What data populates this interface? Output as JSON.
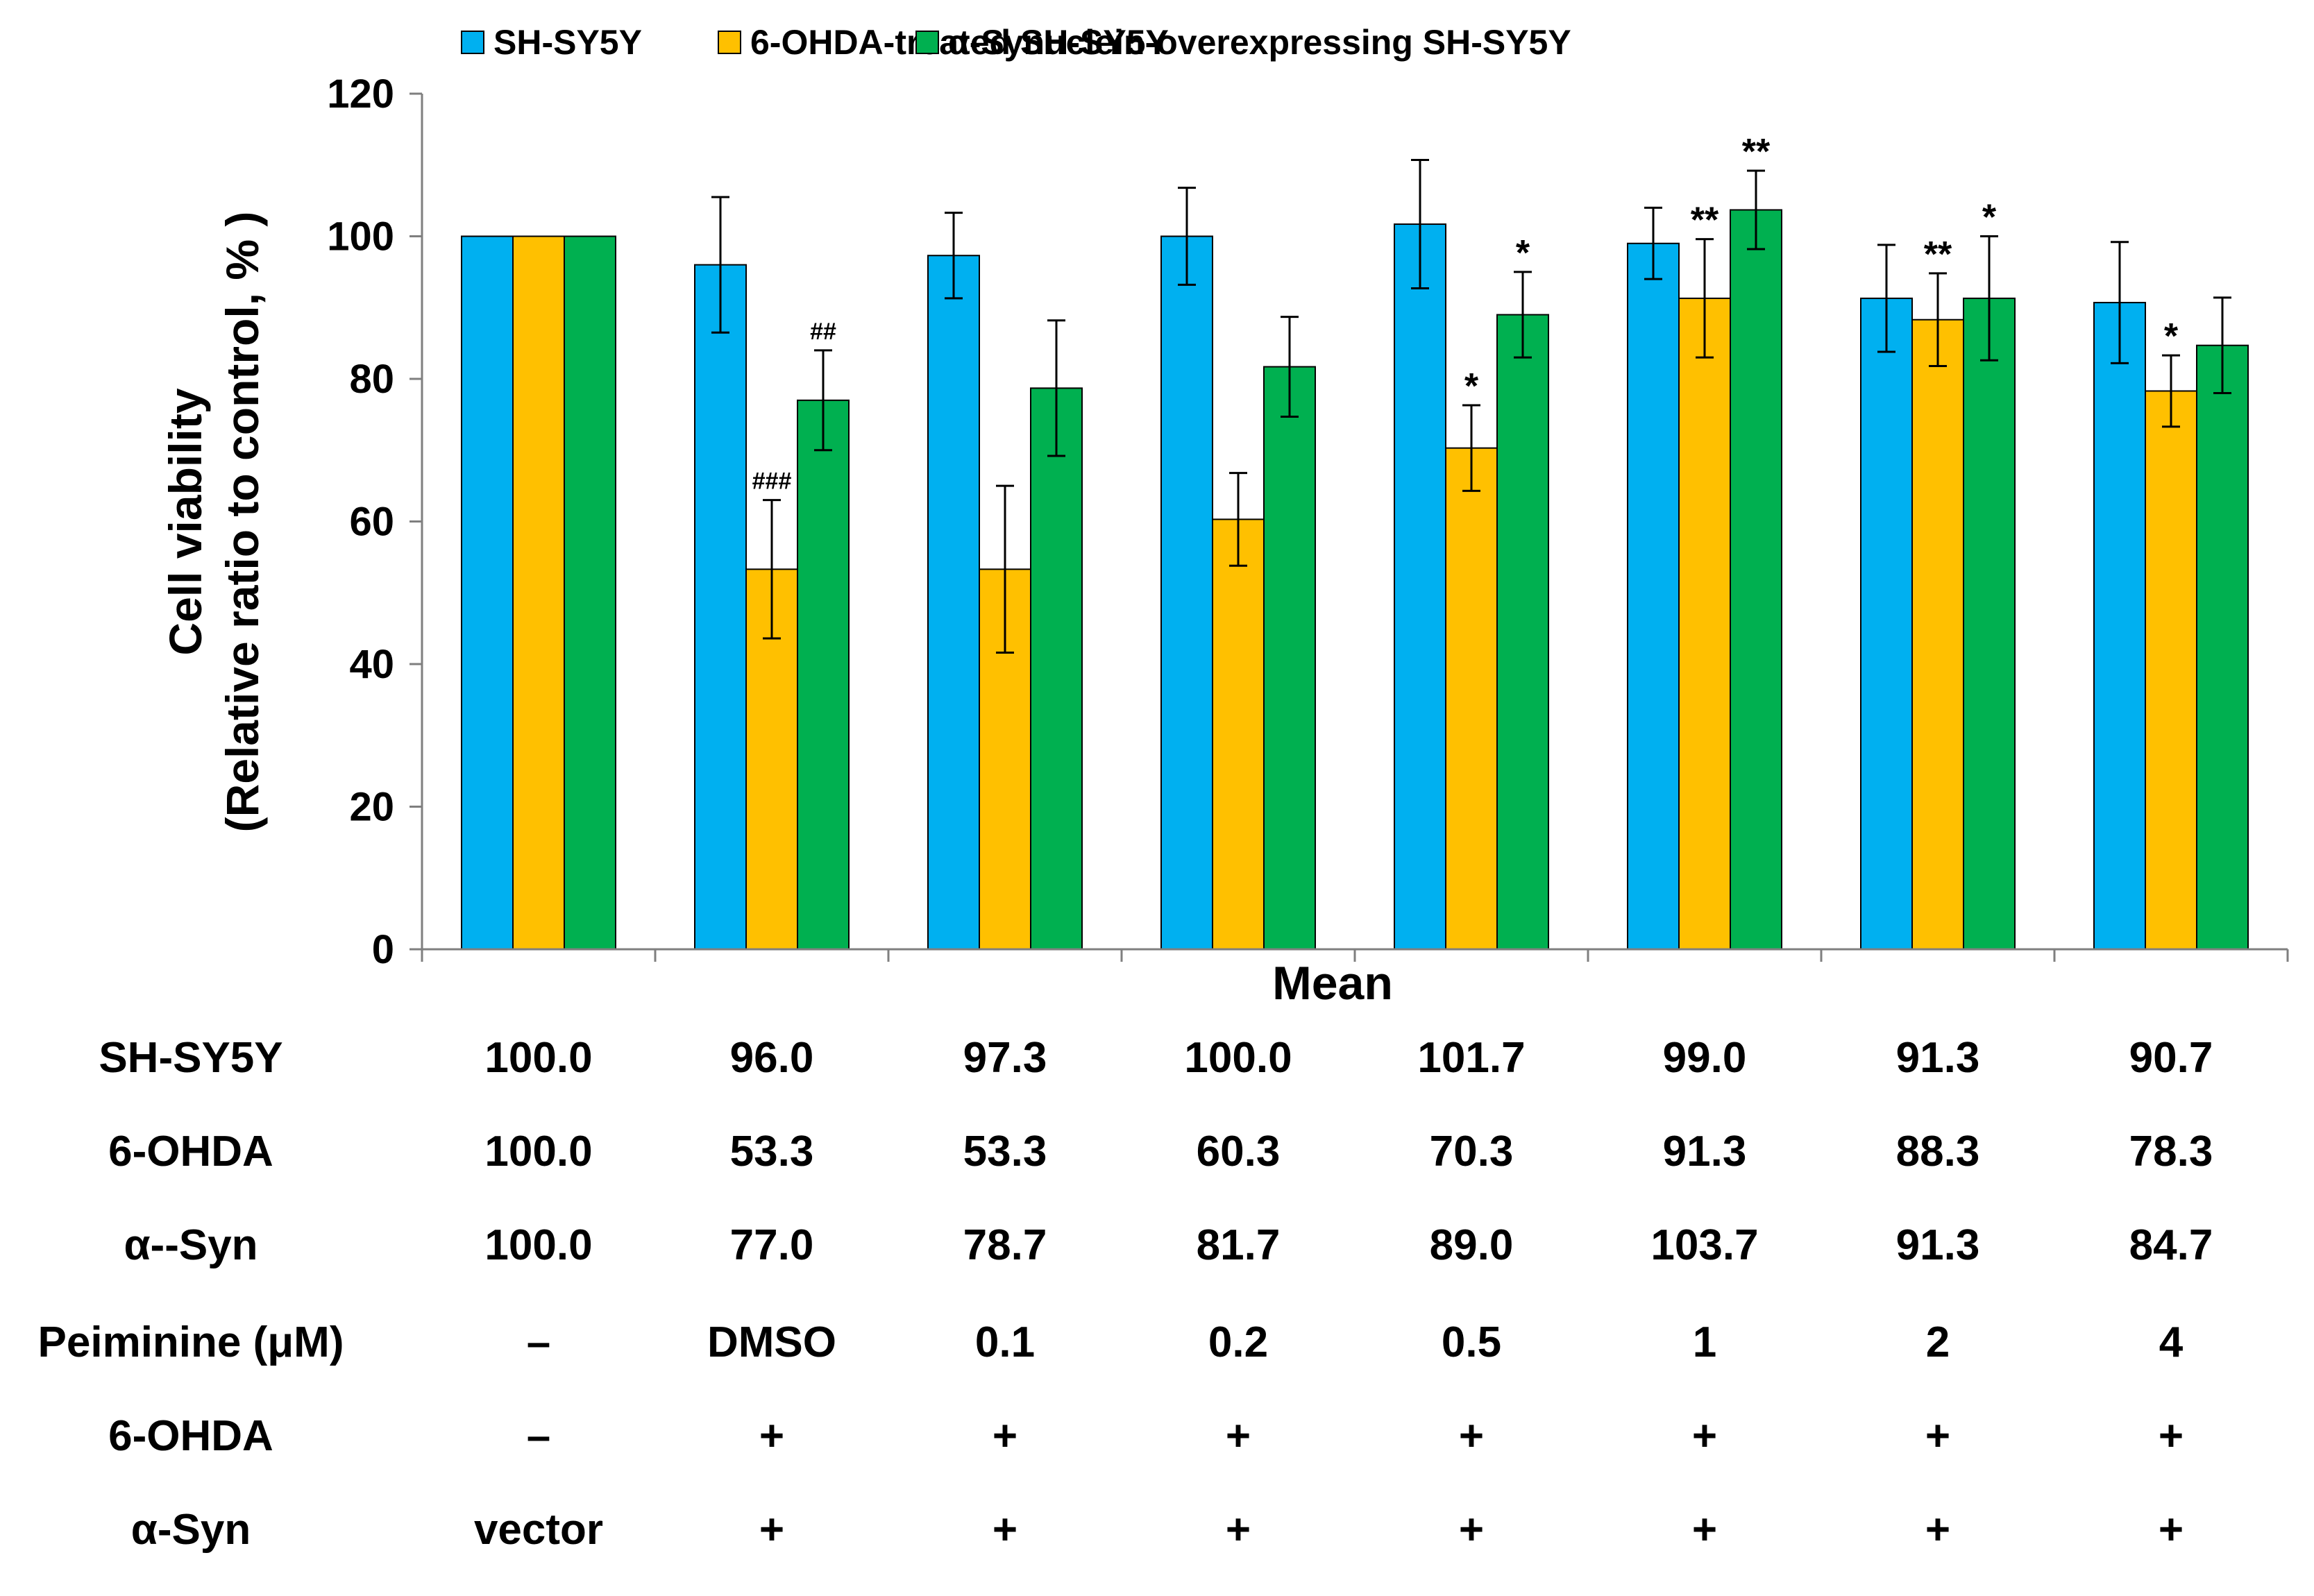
{
  "colors": {
    "sh": "#00B0F0",
    "ohda": "#FFC000",
    "syn": "#00B050",
    "axis": "#7F7F7F",
    "text": "#000000"
  },
  "chart_data": {
    "type": "bar",
    "title": "",
    "xlabel": "Mean",
    "ylabel_line1": "Cell viability",
    "ylabel_line2": "(Relative ratio to control, % )",
    "ylim": [
      0,
      120
    ],
    "yticks": [
      0,
      20,
      40,
      60,
      80,
      100,
      120
    ],
    "legend": [
      "SH-SY5Y",
      "6-OHDA-treated SH-SY5Y",
      "α-Synuclein-overexpressing SH-SY5Y"
    ],
    "series": [
      {
        "name": "SH-SY5Y",
        "key": "sh",
        "values": [
          100.0,
          96.0,
          97.3,
          100.0,
          101.7,
          99.0,
          91.3,
          90.7
        ],
        "errors": [
          0,
          9.5,
          6.0,
          6.8,
          9.0,
          5.0,
          7.5,
          8.5
        ],
        "annotations": [
          "",
          "",
          "",
          "",
          "",
          "",
          "",
          ""
        ]
      },
      {
        "name": "6-OHDA-treated SH-SY5Y",
        "key": "ohda",
        "values": [
          100.0,
          53.3,
          53.3,
          60.3,
          70.3,
          91.3,
          88.3,
          78.3
        ],
        "errors": [
          0,
          9.7,
          11.7,
          6.5,
          6.0,
          8.3,
          6.5,
          5.0
        ],
        "annotations": [
          "",
          "###",
          "",
          "",
          "*",
          "**",
          "**",
          "*"
        ]
      },
      {
        "name": "α-Synuclein-overexpressing SH-SY5Y",
        "key": "syn",
        "values": [
          100.0,
          77.0,
          78.7,
          81.7,
          89.0,
          103.7,
          91.3,
          84.7
        ],
        "errors": [
          0,
          7.0,
          9.5,
          7.0,
          6.0,
          5.5,
          8.7,
          6.7
        ],
        "annotations": [
          "",
          "##",
          "",
          "",
          "*",
          "**",
          "*",
          ""
        ]
      }
    ]
  },
  "table": {
    "rows": [
      {
        "label": "SH-SY5Y",
        "cells": [
          "100.0",
          "96.0",
          "97.3",
          "100.0",
          "101.7",
          "99.0",
          "91.3",
          "90.7"
        ]
      },
      {
        "label": "6-OHDA",
        "cells": [
          "100.0",
          "53.3",
          "53.3",
          "60.3",
          "70.3",
          "91.3",
          "88.3",
          "78.3"
        ]
      },
      {
        "label": "α--Syn",
        "cells": [
          "100.0",
          "77.0",
          "78.7",
          "81.7",
          "89.0",
          "103.7",
          "91.3",
          "84.7"
        ]
      },
      {
        "label": "Peiminine  (μM)",
        "cells": [
          "–",
          "DMSO",
          "0.1",
          "0.2",
          "0.5",
          "1",
          "2",
          "4"
        ]
      },
      {
        "label": "6-OHDA",
        "cells": [
          "–",
          "+",
          "+",
          "+",
          "+",
          "+",
          "+",
          "+"
        ]
      },
      {
        "label": "α-Syn",
        "cells": [
          "vector",
          "+",
          "+",
          "+",
          "+",
          "+",
          "+",
          "+"
        ]
      }
    ]
  }
}
